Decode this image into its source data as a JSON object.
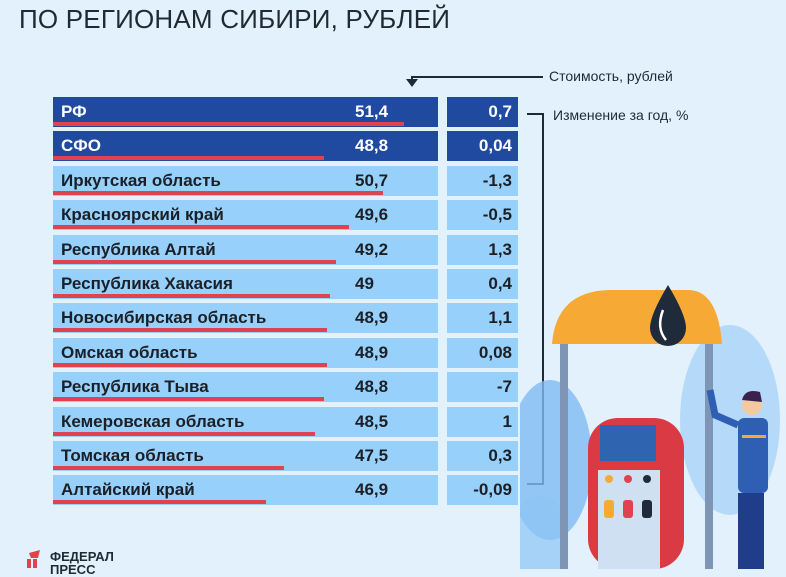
{
  "title": "ПО РЕГИОНАМ СИБИРИ, РУБЛЕЙ",
  "legend": {
    "cost": "Стоимость, рублей",
    "change": "Изменение за год, %"
  },
  "colors": {
    "dark_row": "#1f4aa0",
    "light_row": "#97d0fb",
    "bar": "#e0434f",
    "background": "#e3f1fd"
  },
  "rows": [
    {
      "name": "РФ",
      "price": "51,4",
      "change": "0,7",
      "dark": true
    },
    {
      "name": "СФО",
      "price": "48,8",
      "change": "0,04",
      "dark": true
    },
    {
      "name": "Иркутская область",
      "price": "50,7",
      "change": "-1,3",
      "dark": false
    },
    {
      "name": "Красноярский край",
      "price": "49,6",
      "change": "-0,5",
      "dark": false
    },
    {
      "name": "Республика Алтай",
      "price": "49,2",
      "change": "1,3",
      "dark": false
    },
    {
      "name": "Республика Хакасия",
      "price": "49",
      "change": "0,4",
      "dark": false
    },
    {
      "name": "Новосибирская область",
      "price": "48,9",
      "change": "1,1",
      "dark": false
    },
    {
      "name": "Омская область",
      "price": "48,9",
      "change": "0,08",
      "dark": false
    },
    {
      "name": "Республика Тыва",
      "price": "48,8",
      "change": "-7",
      "dark": false
    },
    {
      "name": "Кемеровская область",
      "price": "48,5",
      "change": "1",
      "dark": false
    },
    {
      "name": "Томская область",
      "price": "47,5",
      "change": "0,3",
      "dark": false
    },
    {
      "name": "Алтайский край",
      "price": "46,9",
      "change": "-0,09",
      "dark": false
    }
  ],
  "logo": {
    "line1": "ФЕДЕРАЛ",
    "line2": "ПРЕСС"
  },
  "chart_data": {
    "type": "bar",
    "title": "ПО РЕГИОНАМ СИБИРИ, РУБЛЕЙ",
    "orientation": "horizontal",
    "categories": [
      "РФ",
      "СФО",
      "Иркутская область",
      "Красноярский край",
      "Республика Алтай",
      "Республика Хакасия",
      "Новосибирская область",
      "Омская область",
      "Республика Тыва",
      "Кемеровская область",
      "Томская область",
      "Алтайский край"
    ],
    "series": [
      {
        "name": "Стоимость, рублей",
        "values": [
          51.4,
          48.8,
          50.7,
          49.6,
          49.2,
          49.0,
          48.9,
          48.9,
          48.8,
          48.5,
          47.5,
          46.9
        ]
      },
      {
        "name": "Изменение за год, %",
        "values": [
          0.7,
          0.04,
          -1.3,
          -0.5,
          1.3,
          0.4,
          1.1,
          0.08,
          -7,
          1,
          0.3,
          -0.09
        ]
      }
    ],
    "xlabel": "",
    "ylabel": "",
    "legend": [
      "Стоимость, рублей",
      "Изменение за год, %"
    ],
    "grid": false
  }
}
